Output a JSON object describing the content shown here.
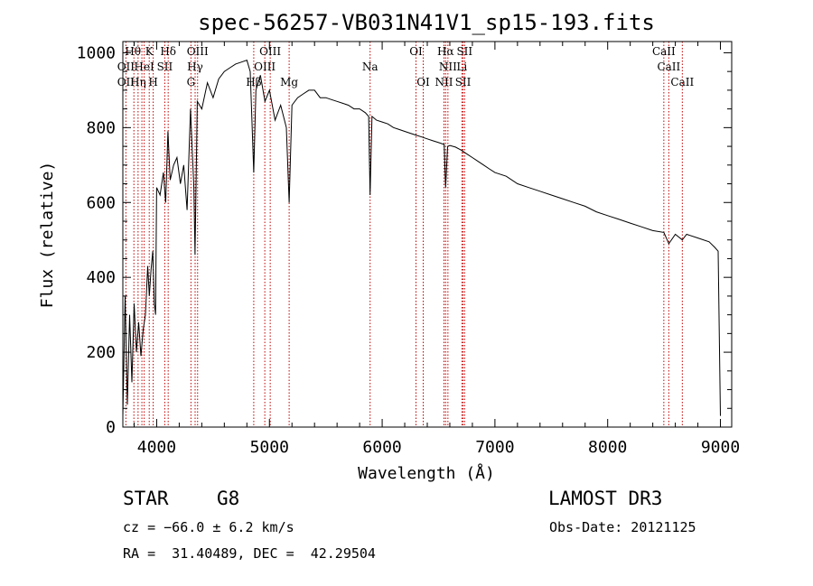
{
  "chart_data": {
    "type": "line",
    "title": "spec-56257-VB031N41V1_sp15-193.fits",
    "xlabel": "Wavelength (Å)",
    "ylabel": "Flux (relative)",
    "xlim": [
      3700,
      9100
    ],
    "ylim": [
      0,
      1030
    ],
    "x_ticks": [
      4000,
      5000,
      6000,
      7000,
      8000,
      9000
    ],
    "y_ticks": [
      0,
      200,
      400,
      600,
      800,
      1000
    ],
    "x_tick_labels": [
      "4000",
      "5000",
      "6000",
      "7000",
      "8000",
      "9000"
    ],
    "y_tick_labels": [
      "0",
      "200",
      "400",
      "600",
      "800",
      "1000"
    ],
    "grid": false,
    "series": [
      {
        "name": "spectrum",
        "x": [
          3700,
          3720,
          3740,
          3760,
          3780,
          3800,
          3820,
          3840,
          3860,
          3880,
          3900,
          3920,
          3935,
          3950,
          3965,
          3980,
          3990,
          4000,
          4030,
          4060,
          4080,
          4100,
          4120,
          4150,
          4180,
          4210,
          4240,
          4270,
          4300,
          4330,
          4340,
          4360,
          4400,
          4450,
          4500,
          4550,
          4600,
          4650,
          4700,
          4750,
          4800,
          4830,
          4861,
          4880,
          4920,
          4960,
          5000,
          5050,
          5100,
          5150,
          5175,
          5200,
          5250,
          5300,
          5350,
          5400,
          5450,
          5500,
          5550,
          5600,
          5650,
          5700,
          5750,
          5800,
          5850,
          5880,
          5893,
          5910,
          5950,
          6000,
          6050,
          6100,
          6150,
          6200,
          6250,
          6300,
          6350,
          6400,
          6450,
          6500,
          6550,
          6563,
          6580,
          6600,
          6650,
          6700,
          6750,
          6800,
          6850,
          6900,
          6950,
          7000,
          7100,
          7200,
          7300,
          7400,
          7500,
          7600,
          7700,
          7800,
          7900,
          8000,
          8100,
          8200,
          8300,
          8400,
          8498,
          8542,
          8600,
          8662,
          8700,
          8800,
          8900,
          8950,
          8980,
          9000
        ],
        "values": [
          30,
          350,
          60,
          300,
          120,
          330,
          200,
          280,
          190,
          260,
          300,
          430,
          350,
          420,
          470,
          330,
          300,
          640,
          620,
          680,
          600,
          790,
          660,
          700,
          720,
          650,
          700,
          580,
          850,
          640,
          460,
          870,
          850,
          920,
          880,
          930,
          950,
          960,
          970,
          975,
          980,
          950,
          680,
          900,
          940,
          870,
          900,
          820,
          860,
          800,
          600,
          860,
          880,
          890,
          900,
          900,
          880,
          880,
          875,
          870,
          865,
          860,
          850,
          850,
          840,
          830,
          620,
          830,
          820,
          815,
          810,
          800,
          795,
          790,
          785,
          780,
          775,
          770,
          765,
          760,
          755,
          640,
          750,
          752,
          748,
          740,
          730,
          720,
          710,
          700,
          690,
          680,
          670,
          650,
          640,
          630,
          620,
          610,
          600,
          590,
          575,
          565,
          555,
          545,
          535,
          525,
          520,
          490,
          515,
          500,
          515,
          505,
          495,
          480,
          470,
          30
        ]
      }
    ],
    "lines": [
      {
        "x": 3727,
        "labels": [
          "OII"
        ]
      },
      {
        "x": 3798,
        "labels": [
          "Hθ"
        ]
      },
      {
        "x": 3835,
        "labels": [
          "Hη"
        ]
      },
      {
        "x": 3869,
        "labels": [
          "Hε"
        ]
      },
      {
        "x": 3889,
        "labels": [
          "HeI"
        ]
      },
      {
        "x": 3934,
        "labels": [
          "K"
        ]
      },
      {
        "x": 3969,
        "labels": [
          "H"
        ]
      },
      {
        "x": 4072,
        "labels": [
          "SII"
        ]
      },
      {
        "x": 4102,
        "labels": [
          "Hδ"
        ]
      },
      {
        "x": 4304,
        "labels": [
          "G"
        ]
      },
      {
        "x": 4341,
        "labels": [
          "Hγ"
        ]
      },
      {
        "x": 4363,
        "labels": [
          "OIII"
        ]
      },
      {
        "x": 4861,
        "labels": [
          "Hβ"
        ]
      },
      {
        "x": 4959,
        "labels": [
          "OIII"
        ]
      },
      {
        "x": 5007,
        "labels": [
          "OIII"
        ]
      },
      {
        "x": 5175,
        "labels": [
          "Mg"
        ]
      },
      {
        "x": 5893,
        "labels": [
          "Na"
        ]
      },
      {
        "x": 6300,
        "labels": [
          "OI"
        ]
      },
      {
        "x": 6364,
        "labels": [
          "OI"
        ]
      },
      {
        "x": 6548,
        "labels": [
          "NII"
        ]
      },
      {
        "x": 6563,
        "labels": [
          "Hα"
        ]
      },
      {
        "x": 6583,
        "labels": [
          "NII"
        ]
      },
      {
        "x": 6707,
        "labels": [
          "Li"
        ]
      },
      {
        "x": 6717,
        "labels": [
          "SII"
        ]
      },
      {
        "x": 6731,
        "labels": [
          "SII"
        ]
      },
      {
        "x": 8498,
        "labels": [
          "CaII"
        ]
      },
      {
        "x": 8542,
        "labels": [
          "CaII"
        ]
      },
      {
        "x": 8662,
        "labels": [
          "CaII"
        ]
      }
    ],
    "line_labels": [
      {
        "text": "Hθ",
        "x": 3790,
        "row": 0
      },
      {
        "text": "K",
        "x": 3934,
        "row": 0
      },
      {
        "text": "Hδ",
        "x": 4102,
        "row": 0
      },
      {
        "text": "OIII",
        "x": 4363,
        "row": 0
      },
      {
        "text": "OIII",
        "x": 5007,
        "row": 0
      },
      {
        "text": "OI",
        "x": 6300,
        "row": 0
      },
      {
        "text": "Hα",
        "x": 6563,
        "row": 0
      },
      {
        "text": "SII",
        "x": 6731,
        "row": 0
      },
      {
        "text": "CaII",
        "x": 8498,
        "row": 0
      },
      {
        "text": "OII",
        "x": 3727,
        "row": 1
      },
      {
        "text": "HeI",
        "x": 3889,
        "row": 1
      },
      {
        "text": "SII",
        "x": 4072,
        "row": 1
      },
      {
        "text": "Hγ",
        "x": 4341,
        "row": 1
      },
      {
        "text": "OIII",
        "x": 4959,
        "row": 1
      },
      {
        "text": "Na",
        "x": 5893,
        "row": 1
      },
      {
        "text": "NII",
        "x": 6583,
        "row": 1
      },
      {
        "text": "Li",
        "x": 6707,
        "row": 1
      },
      {
        "text": "CaII",
        "x": 8542,
        "row": 1
      },
      {
        "text": "OII",
        "x": 3727,
        "row": 2
      },
      {
        "text": "Hη",
        "x": 3835,
        "row": 2
      },
      {
        "text": "H",
        "x": 3969,
        "row": 2
      },
      {
        "text": "G",
        "x": 4304,
        "row": 2
      },
      {
        "text": "Hβ",
        "x": 4861,
        "row": 2
      },
      {
        "text": "Mg",
        "x": 5175,
        "row": 2
      },
      {
        "text": "OI",
        "x": 6364,
        "row": 2
      },
      {
        "text": "NII",
        "x": 6548,
        "row": 2
      },
      {
        "text": "SII",
        "x": 6717,
        "row": 2
      },
      {
        "text": "CaII",
        "x": 8662,
        "row": 2
      }
    ],
    "colors": {
      "spectrum": "#000000",
      "lines": "#c00000"
    }
  },
  "info": {
    "object_class": "STAR",
    "subclass": "G8",
    "survey": "LAMOST DR3",
    "cz": "cz = −66.0 ± 6.2 km/s",
    "obs_date": "Obs-Date: 20121125",
    "coords": "RA =  31.40489, DEC =  42.29504"
  }
}
